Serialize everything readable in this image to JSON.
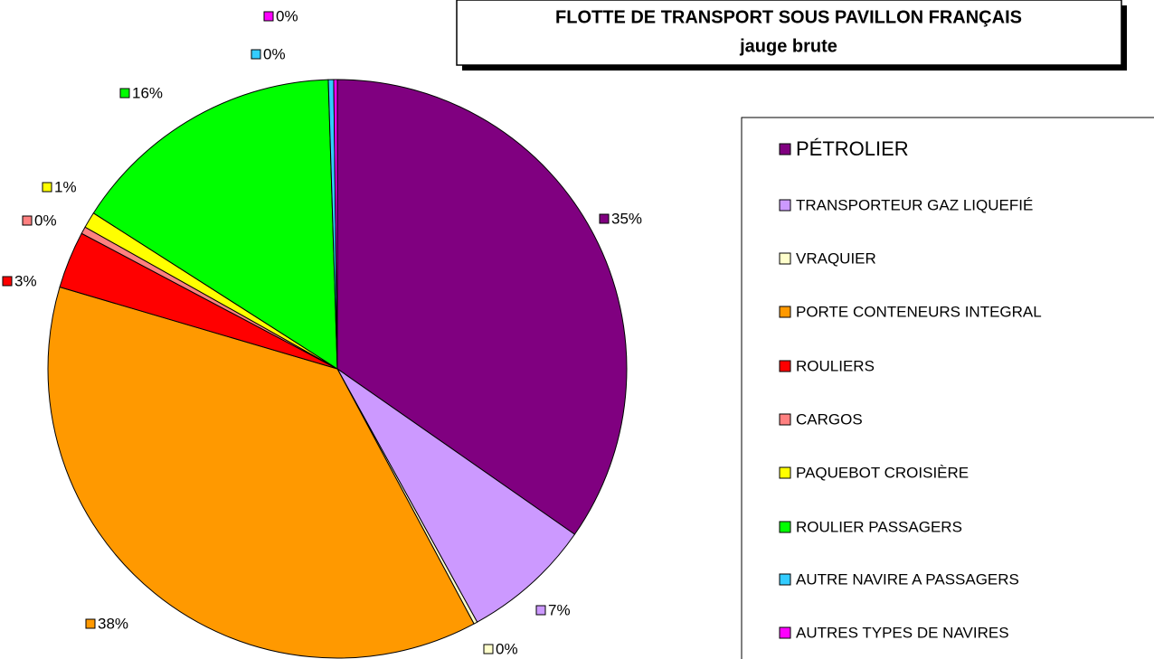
{
  "chart_data": {
    "type": "pie",
    "title": "FLOTTE DE TRANSPORT SOUS PAVILLON FRANÇAIS",
    "subtitle": "jauge brute",
    "categories": [
      "PÉTROLIER",
      "TRANSPORTEUR GAZ LIQUEFIÉ",
      "VRAQUIER",
      "PORTE CONTENEURS INTEGRAL",
      "ROULIERS",
      "CARGOS",
      "PAQUEBOT CROISIÈRE",
      "ROULIER PASSAGERS",
      "AUTRE NAVIRE A PASSAGERS",
      "AUTRES TYPES DE NAVIRES"
    ],
    "values": [
      34.8,
      7.3,
      0.2,
      37.5,
      3.2,
      0.4,
      0.9,
      15.5,
      0.3,
      0.2
    ],
    "value_labels": [
      "35%",
      "7%",
      "0%",
      "38%",
      "3%",
      "0%",
      "1%",
      "16%",
      "0%",
      "0%"
    ],
    "colors": [
      "#800080",
      "#CC99FF",
      "#FFFFCC",
      "#FF9900",
      "#FF0000",
      "#FF8080",
      "#FFFF00",
      "#00FF00",
      "#33CCFF",
      "#FF00FF"
    ]
  }
}
